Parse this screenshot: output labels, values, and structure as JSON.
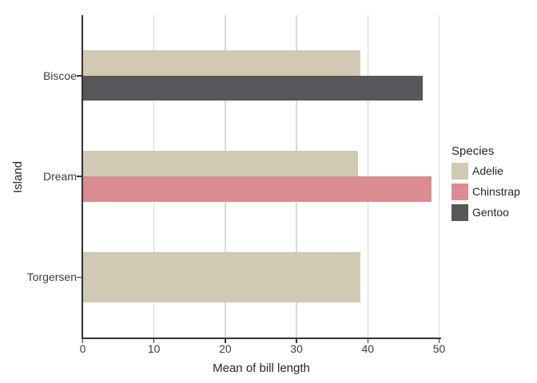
{
  "chart_data": {
    "type": "bar",
    "orientation": "horizontal",
    "title": "",
    "xlabel": "Mean of bill length",
    "ylabel": "Island",
    "xlim": [
      0,
      50
    ],
    "x_ticks": [
      0,
      10,
      20,
      30,
      40,
      50
    ],
    "categories": [
      "Biscoe",
      "Dream",
      "Torgersen"
    ],
    "series": [
      {
        "name": "Adelie",
        "color": "#d1c9b3",
        "values": [
          39.0,
          38.6,
          39.0
        ]
      },
      {
        "name": "Chinstrap",
        "color": "#d98d90",
        "values": [
          null,
          48.9,
          null
        ]
      },
      {
        "name": "Gentoo",
        "color": "#57565a",
        "values": [
          47.7,
          null,
          null
        ]
      }
    ],
    "bars_by_category": [
      {
        "category": "Biscoe",
        "segments": [
          {
            "species": "Adelie",
            "value": 39.0
          },
          {
            "species": "Gentoo",
            "value": 47.7
          }
        ]
      },
      {
        "category": "Dream",
        "segments": [
          {
            "species": "Adelie",
            "value": 38.6
          },
          {
            "species": "Chinstrap",
            "value": 48.9
          }
        ]
      },
      {
        "category": "Torgersen",
        "segments": [
          {
            "species": "Adelie",
            "value": 39.0
          }
        ]
      }
    ],
    "legend": {
      "title": "Species",
      "position": "right",
      "entries": [
        {
          "label": "Adelie",
          "color": "#d1c9b3"
        },
        {
          "label": "Chinstrap",
          "color": "#d98d90"
        },
        {
          "label": "Gentoo",
          "color": "#57565a"
        }
      ]
    },
    "grid": {
      "vertical_major": true,
      "horizontal": false,
      "color": "#d9d9d9"
    },
    "axis": {
      "line_color": "#333333",
      "tick_color": "#333333",
      "tick_text_color": "#3d3d3d",
      "title_text_color": "#262626"
    }
  }
}
